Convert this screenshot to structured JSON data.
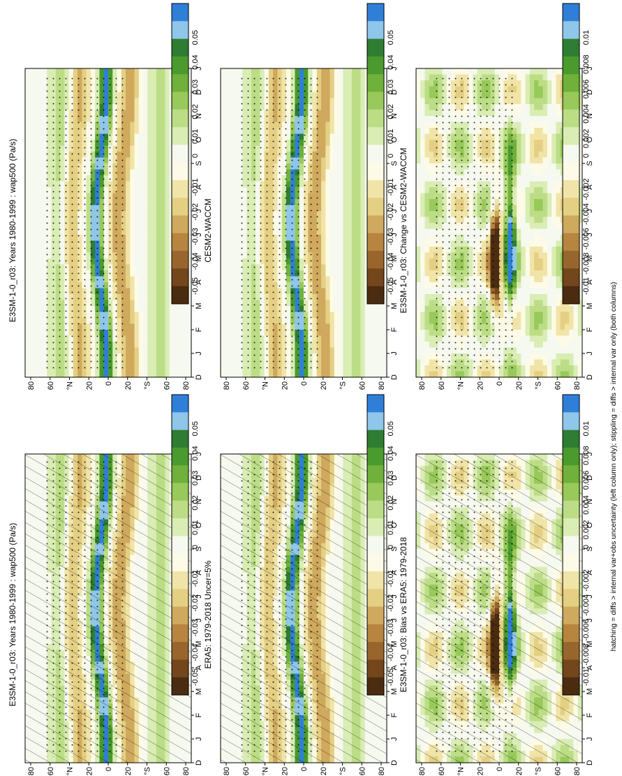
{
  "figure": {
    "footnote": "hatching = diffs > internal var+obs uncertainty (left column only); stippling = diffs > internal var only (both columns)"
  },
  "palettes": {
    "main": [
      "#2f7fd9",
      "#8fc6ea",
      "#2e7d32",
      "#4a9a2e",
      "#6fb13a",
      "#98c95a",
      "#bcdd86",
      "#d9edb4",
      "#f6f9ef",
      "#fdfbe8",
      "#f1e4a8",
      "#e4cf83",
      "#cfa95d",
      "#b78540",
      "#98662c",
      "#74461c",
      "#4c2c10"
    ],
    "zero": "#f4f6fb"
  },
  "chart_data": [
    {
      "id": "model_left",
      "type": "heatmap",
      "title": "E3SM-1-0_r03: Years 1980-1999 : wap500 (Pa/s)",
      "x_ticks": [
        "D",
        "J",
        "F",
        "M",
        "A",
        "M",
        "J",
        "J",
        "A",
        "S",
        "O",
        "N",
        "D",
        "J"
      ],
      "y_ticks": [
        "80",
        "60",
        "°N",
        "20",
        "0",
        "20",
        "°S",
        "60",
        "80"
      ],
      "colorbar_ticks": [
        "0.05",
        "0.04",
        "0.03",
        "0.02",
        "0.01",
        "0",
        "-0.01",
        "-0.02",
        "-0.03",
        "-0.04",
        "-0.05"
      ],
      "hatching": true,
      "stippling": true
    },
    {
      "id": "model_right",
      "type": "heatmap",
      "title": "E3SM-1-0_r03: Years 1980-1999 : wap500 (Pa/s)",
      "x_ticks": [
        "D",
        "J",
        "F",
        "M",
        "A",
        "M",
        "J",
        "J",
        "A",
        "S",
        "O",
        "N",
        "D",
        "J"
      ],
      "y_ticks": [
        "80",
        "60",
        "°N",
        "20",
        "0",
        "20",
        "°S",
        "60",
        "80"
      ],
      "colorbar_ticks": [
        "0.05",
        "0.04",
        "0.03",
        "0.02",
        "0.01",
        "0",
        "-0.01",
        "-0.02",
        "-0.03",
        "-0.04",
        "-0.05"
      ],
      "hatching": false,
      "stippling": true
    },
    {
      "id": "obs",
      "type": "heatmap",
      "title": "ERA5: 1979-2018 Uncer=5%",
      "x_ticks": [
        "D",
        "J",
        "F",
        "M",
        "A",
        "M",
        "J",
        "J",
        "A",
        "S",
        "O",
        "N",
        "D",
        "J"
      ],
      "y_ticks": [
        "80",
        "60",
        "°N",
        "20",
        "0",
        "20",
        "°S",
        "60",
        "80"
      ],
      "colorbar_ticks": [
        "0.05",
        "0.04",
        "0.03",
        "0.02",
        "0.01",
        "0",
        "-0.01",
        "-0.02",
        "-0.03",
        "-0.04",
        "-0.05"
      ],
      "hatching": true,
      "stippling": true
    },
    {
      "id": "ref_model",
      "type": "heatmap",
      "title": "CESM2-WACCM",
      "x_ticks": [
        "D",
        "J",
        "F",
        "M",
        "A",
        "M",
        "J",
        "J",
        "A",
        "S",
        "O",
        "N",
        "D",
        "J"
      ],
      "y_ticks": [
        "80",
        "60",
        "°N",
        "20",
        "0",
        "20",
        "°S",
        "60",
        "80"
      ],
      "colorbar_ticks": [
        "0.05",
        "0.04",
        "0.03",
        "0.02",
        "0.01",
        "0",
        "-0.01",
        "-0.02",
        "-0.03",
        "-0.04",
        "-0.05"
      ],
      "hatching": false,
      "stippling": true
    },
    {
      "id": "bias",
      "type": "heatmap",
      "title": "E3SM-1-0_r03: Bias vs ERA5: 1979-2018",
      "x_ticks": [
        "D",
        "J",
        "F",
        "M",
        "A",
        "M",
        "J",
        "J",
        "A",
        "S",
        "O",
        "N",
        "D",
        "J"
      ],
      "y_ticks": [
        "80",
        "60",
        "°N",
        "20",
        "0",
        "20",
        "°S",
        "60",
        "80"
      ],
      "colorbar_ticks": [
        "0.01",
        "0.008",
        "0.006",
        "0.004",
        "0.002",
        "0",
        "-0.002",
        "-0.004",
        "-0.006",
        "-0.008",
        "-0.01"
      ],
      "hatching": true,
      "stippling": true
    },
    {
      "id": "change",
      "type": "heatmap",
      "title": "E3SM-1-0_r03: Change vs CESM2-WACCM",
      "x_ticks": [
        "D",
        "J",
        "F",
        "M",
        "A",
        "M",
        "J",
        "J",
        "A",
        "S",
        "O",
        "N",
        "D",
        "J"
      ],
      "y_ticks": [
        "80",
        "60",
        "°N",
        "20",
        "0",
        "20",
        "°S",
        "60",
        "80"
      ],
      "colorbar_ticks": [
        "0.01",
        "0.008",
        "0.006",
        "0.004",
        "0.002",
        "0",
        "-0.002",
        "-0.004",
        "-0.006",
        "-0.008",
        "-0.01"
      ],
      "hatching": false,
      "stippling": true
    }
  ]
}
